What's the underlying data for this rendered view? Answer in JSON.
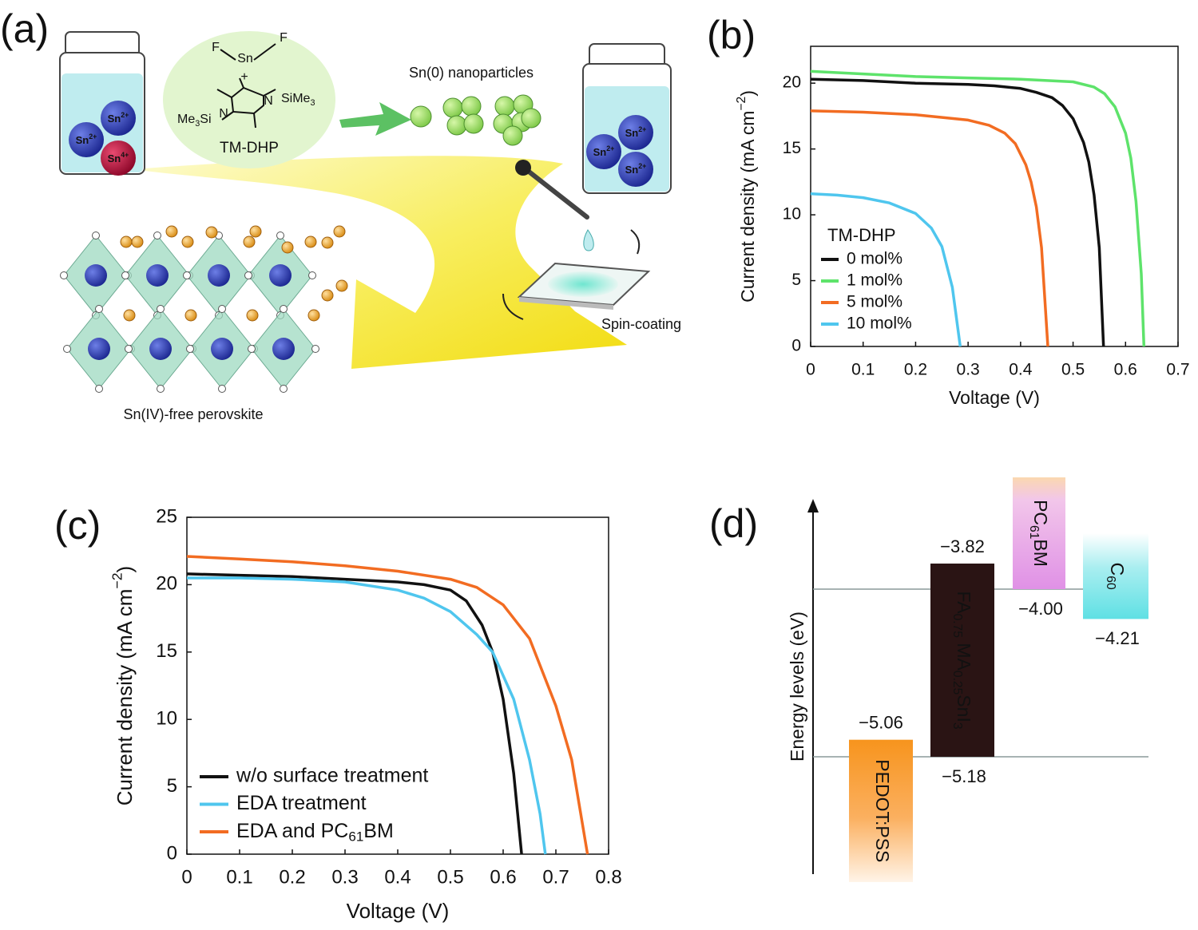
{
  "panel_labels": [
    "(a)",
    "(b)",
    "(c)",
    "(d)"
  ],
  "schematic": {
    "molecule": {
      "atoms": [
        "F",
        "Sn",
        "F",
        "+",
        "N",
        "N"
      ],
      "groups": [
        [
          "SiMe",
          {
            "sub": "3"
          }
        ],
        [
          "Me",
          {
            "sub": "3"
          },
          "Si"
        ]
      ],
      "name": "TM-DHP"
    },
    "product": "Sn(0) nanoparticles",
    "ions_before": [
      [
        "Sn",
        {
          "sup": "2+"
        }
      ],
      [
        "Sn",
        {
          "sup": "2+"
        }
      ],
      [
        "Sn",
        {
          "sup": "4+"
        }
      ]
    ],
    "ions_after": [
      [
        "Sn",
        {
          "sup": "2+"
        }
      ],
      [
        "Sn",
        {
          "sup": "2+"
        }
      ],
      [
        "Sn",
        {
          "sup": "2+"
        }
      ]
    ],
    "process": "Spin-coating",
    "result": "Sn(IV)-free perovskite"
  },
  "chart_data": [
    {
      "type": "line",
      "xlabel": "Voltage (V)",
      "ylabel": [
        "Current density (mA cm",
        {
          "sup": "−2"
        },
        ")"
      ],
      "xlim": [
        0,
        0.7
      ],
      "xticks": [
        0,
        0.1,
        0.2,
        0.3,
        0.4,
        0.5,
        0.6,
        0.7
      ],
      "ylim": [
        0,
        22.8
      ],
      "yticks": [
        0,
        5,
        10,
        15,
        20
      ],
      "legend": "lower left",
      "legend_title": "TM-DHP",
      "series": [
        {
          "name": "0 mol%",
          "color": "#111111",
          "x": [
            0,
            0.1,
            0.2,
            0.3,
            0.35,
            0.4,
            0.43,
            0.46,
            0.48,
            0.5,
            0.52,
            0.53,
            0.54,
            0.55,
            0.558
          ],
          "values": [
            20.3,
            20.2,
            20.0,
            19.9,
            19.8,
            19.6,
            19.3,
            18.9,
            18.3,
            17.3,
            15.5,
            14,
            11.5,
            7.5,
            0
          ]
        },
        {
          "name": "1 mol%",
          "color": "#5ee36b",
          "x": [
            0,
            0.1,
            0.2,
            0.3,
            0.4,
            0.5,
            0.54,
            0.56,
            0.58,
            0.6,
            0.61,
            0.62,
            0.63,
            0.635
          ],
          "values": [
            20.9,
            20.7,
            20.5,
            20.4,
            20.3,
            20.1,
            19.7,
            19.2,
            18.2,
            16.2,
            14.3,
            11,
            5.5,
            0
          ]
        },
        {
          "name": "5 mol%",
          "color": "#f26c22",
          "x": [
            0,
            0.1,
            0.2,
            0.3,
            0.34,
            0.37,
            0.39,
            0.41,
            0.42,
            0.43,
            0.44,
            0.452
          ],
          "values": [
            17.9,
            17.8,
            17.6,
            17.2,
            16.8,
            16.2,
            15.4,
            13.8,
            12.5,
            10.6,
            7.5,
            0
          ]
        },
        {
          "name": "10 mol%",
          "color": "#4fc6ee",
          "x": [
            0,
            0.05,
            0.1,
            0.15,
            0.2,
            0.23,
            0.25,
            0.27,
            0.285
          ],
          "values": [
            11.6,
            11.5,
            11.3,
            10.9,
            10.1,
            9.0,
            7.6,
            4.5,
            0
          ]
        }
      ]
    },
    {
      "type": "line",
      "xlabel": "Voltage (V)",
      "ylabel": [
        "Current density (mA cm",
        {
          "sup": "−2"
        },
        ")"
      ],
      "xlim": [
        0,
        0.8
      ],
      "xticks": [
        0,
        0.1,
        0.2,
        0.3,
        0.4,
        0.5,
        0.6,
        0.7,
        0.8
      ],
      "ylim": [
        0,
        25
      ],
      "yticks": [
        0,
        5,
        10,
        15,
        20,
        25
      ],
      "legend": "lower left",
      "series": [
        {
          "name": "w/o surface treatment",
          "color": "#111111",
          "x": [
            0,
            0.1,
            0.2,
            0.3,
            0.4,
            0.45,
            0.5,
            0.53,
            0.56,
            0.58,
            0.6,
            0.62,
            0.635
          ],
          "values": [
            20.8,
            20.7,
            20.6,
            20.4,
            20.2,
            20.0,
            19.6,
            18.8,
            17,
            15,
            11.5,
            6,
            0
          ]
        },
        {
          "name": "EDA treatment",
          "color": "#4fc6ee",
          "x": [
            0,
            0.1,
            0.2,
            0.3,
            0.4,
            0.45,
            0.5,
            0.55,
            0.58,
            0.62,
            0.65,
            0.67,
            0.68
          ],
          "values": [
            20.5,
            20.5,
            20.4,
            20.2,
            19.6,
            19.0,
            18.0,
            16.3,
            15,
            11.5,
            7,
            3,
            0
          ]
        },
        {
          "name": [
            "EDA and PC",
            {
              "sub": "61"
            },
            "BM"
          ],
          "color": "#f26c22",
          "x": [
            0,
            0.1,
            0.2,
            0.3,
            0.4,
            0.5,
            0.55,
            0.6,
            0.65,
            0.7,
            0.73,
            0.76
          ],
          "values": [
            22.1,
            21.9,
            21.7,
            21.4,
            21.0,
            20.4,
            19.8,
            18.5,
            16,
            11,
            7,
            0
          ]
        }
      ]
    }
  ],
  "energy_diagram": {
    "ylabel": "Energy levels (eV)",
    "layers": [
      {
        "name": "PEDOT:PSS",
        "top": {
          "value": -5.06,
          "label": "−5.06"
        }
      },
      {
        "name": [
          "FA",
          {
            "sub": "0.75"
          },
          " MA",
          {
            "sub": "0.25"
          },
          "SnI",
          {
            "sub": "3"
          }
        ],
        "top": {
          "value": -3.82,
          "label": "−3.82"
        },
        "bottom": {
          "value": -5.18,
          "label": "−5.18"
        }
      },
      {
        "name": [
          "PC",
          {
            "sub": "61"
          },
          "BM"
        ],
        "bottom": {
          "value": -4.0,
          "label": "−4.00"
        }
      },
      {
        "name": [
          "C",
          {
            "sub": "60"
          }
        ],
        "bottom": {
          "value": -4.21,
          "label": "−4.21"
        }
      }
    ]
  }
}
